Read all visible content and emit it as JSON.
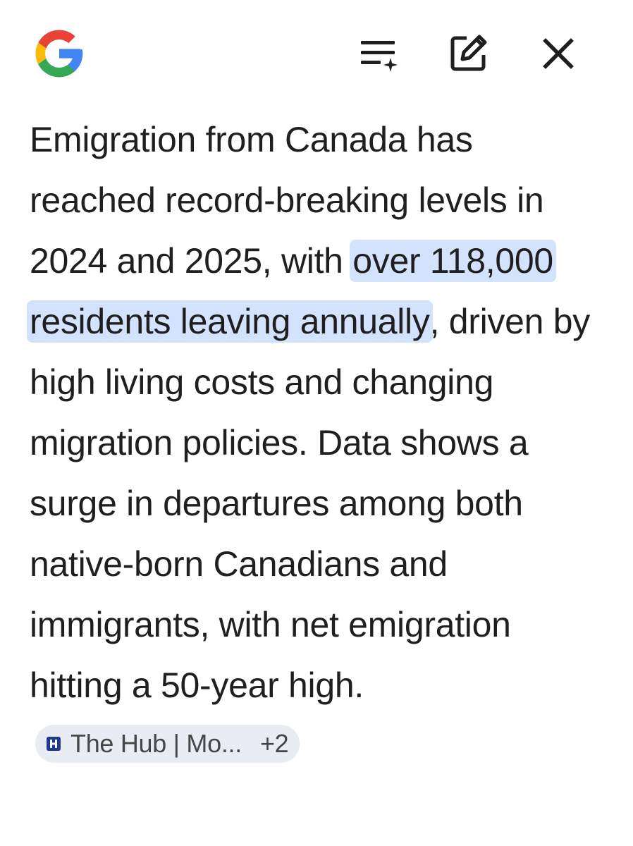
{
  "header": {
    "logo_icon": "google-g-logo",
    "buttons": [
      {
        "icon": "list-sparkle-icon"
      },
      {
        "icon": "edit-icon"
      },
      {
        "icon": "close-icon"
      }
    ]
  },
  "answer": {
    "part1": "Emigration from Canada has reached record-breaking levels in 2024 and 2025, with ",
    "highlight": "over 118,000 residents leaving annually",
    "part2": ", driven by high living costs and changing migration policies. Data shows a surge in departures among both native-born Canadians and immigrants, with net emigration hitting a 50-year high."
  },
  "source_chip": {
    "label": "The Hub | Mo...",
    "count": "+2",
    "icon": "source-favicon-icon"
  },
  "colors": {
    "highlight_bg": "#d3e3fd",
    "text": "#1f1f1f",
    "chip_bg": "#e9edf3",
    "chip_icon": "#1f3a93"
  }
}
